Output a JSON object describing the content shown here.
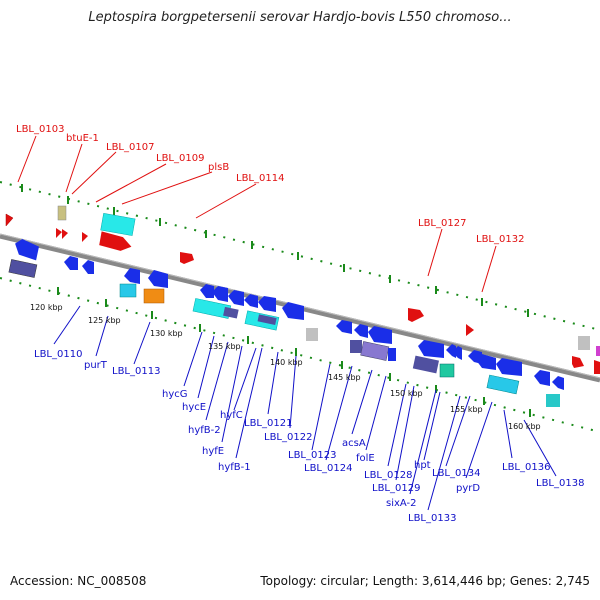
{
  "title": "Leptospira borgpetersenii serovar Hardjo-bovis L550 chromoso...",
  "footer": {
    "accession": "Accession: NC_008508",
    "summary": "Topology: circular; Length: 3,614,446 bp; Genes: 2,745"
  },
  "colors": {
    "forward_label": "#e01010",
    "reverse_label": "#1010c8",
    "backbone": "#888888",
    "tick": "#1a8a1a"
  },
  "kbp_markers": [
    "120 kbp",
    "125 kbp",
    "130 kbp",
    "135 kbp",
    "140 kbp",
    "145 kbp",
    "150 kbp",
    "155 kbp",
    "160 kbp"
  ],
  "top_labels": [
    "LBL_0103",
    "btuE-1",
    "LBL_0107",
    "LBL_0109",
    "plsB",
    "LBL_0114",
    "LBL_0127",
    "LBL_0132"
  ],
  "bottom_labels": [
    "LBL_0110",
    "purT",
    "LBL_0113",
    "hycG",
    "hycE",
    "hyfB-2",
    "hyfE",
    "hyfB-1",
    "hyfC",
    "LBL_0121",
    "LBL_0122",
    "LBL_0123",
    "LBL_0124",
    "acsA",
    "folE",
    "LBL_0128",
    "LBL_0129",
    "sixA-2",
    "hpt",
    "LBL_0133",
    "LBL_0134",
    "pyrD",
    "LBL_0136",
    "LBL_0138"
  ]
}
